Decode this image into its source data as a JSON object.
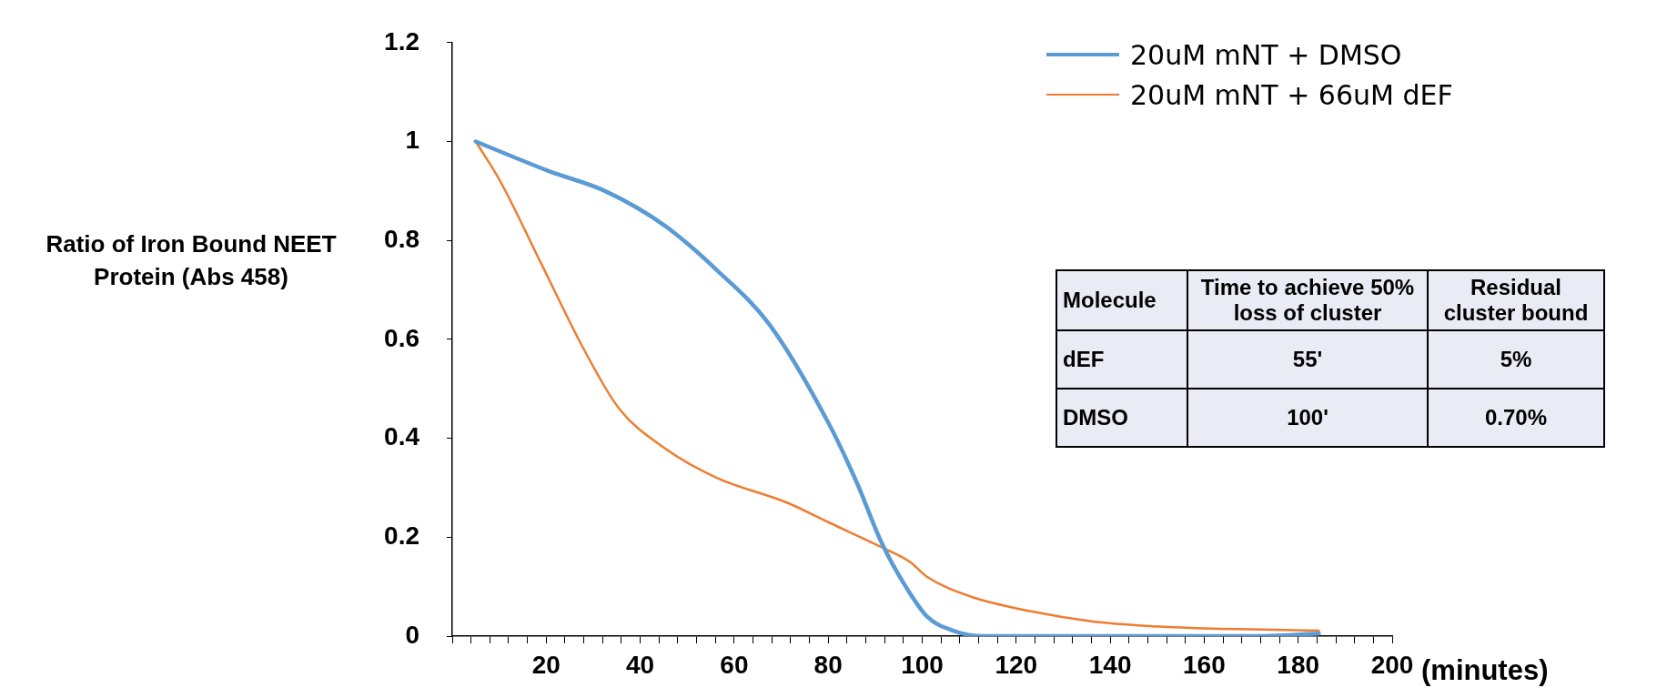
{
  "chart_data": {
    "type": "line",
    "xlabel": "(minutes)",
    "ylabel": "Ratio of Iron Bound NEET Protein (Abs 458)",
    "series": [
      {
        "name": "20uM mNT + DMSO",
        "color": "#5b9bd5",
        "x": [
          5,
          20.6,
          32.5,
          45.2,
          56.3,
          67.5,
          80.1,
          86.1,
          91.3,
          96.5,
          101,
          106.9,
          112.9,
          130,
          150,
          170,
          184.4
        ],
        "values": [
          1,
          0.94,
          0.9,
          0.83,
          0.74,
          0.63,
          0.43,
          0.31,
          0.19,
          0.1,
          0.04,
          0.01,
          0,
          0,
          0,
          0,
          0.005
        ]
      },
      {
        "name": "20uM mNT + 66uM dEF",
        "color": "#ed7d31",
        "x": [
          5,
          10.2,
          19.1,
          28,
          35.5,
          45.2,
          56.3,
          71.2,
          80.1,
          91.3,
          97.4,
          101,
          110.3,
          123.2,
          136,
          149,
          161.9,
          174.8,
          184.4
        ],
        "values": [
          1,
          0.92,
          0.75,
          0.58,
          0.46,
          0.38,
          0.32,
          0.27,
          0.23,
          0.18,
          0.15,
          0.12,
          0.08,
          0.05,
          0.03,
          0.02,
          0.015,
          0.013,
          0.011
        ]
      }
    ],
    "xlim": [
      0,
      200
    ],
    "xticks": [
      {
        "value": 0,
        "label": null
      },
      {
        "value": 4,
        "label": null
      },
      {
        "value": 8,
        "label": null
      },
      {
        "value": 12,
        "label": null
      },
      {
        "value": 16,
        "label": null
      },
      20,
      {
        "value": 24,
        "label": null
      },
      {
        "value": 28,
        "label": null
      },
      {
        "value": 32,
        "label": null
      },
      {
        "value": 36,
        "label": null
      },
      40,
      {
        "value": 44,
        "label": null
      },
      {
        "value": 48,
        "label": null
      },
      {
        "value": 52,
        "label": null
      },
      {
        "value": 56,
        "label": null
      },
      60,
      {
        "value": 64,
        "label": null
      },
      {
        "value": 68,
        "label": null
      },
      {
        "value": 72,
        "label": null
      },
      {
        "value": 76,
        "label": null
      },
      80,
      {
        "value": 84,
        "label": null
      },
      {
        "value": 88,
        "label": null
      },
      {
        "value": 92,
        "label": null
      },
      {
        "value": 96,
        "label": null
      },
      100,
      {
        "value": 104,
        "label": null
      },
      {
        "value": 108,
        "label": null
      },
      {
        "value": 112,
        "label": null
      },
      {
        "value": 116,
        "label": null
      },
      120,
      {
        "value": 124,
        "label": null
      },
      {
        "value": 128,
        "label": null
      },
      {
        "value": 132,
        "label": null
      },
      {
        "value": 136,
        "label": null
      },
      140,
      {
        "value": 144,
        "label": null
      },
      {
        "value": 148,
        "label": null
      },
      {
        "value": 152,
        "label": null
      },
      {
        "value": 156,
        "label": null
      },
      160,
      {
        "value": 164,
        "label": null
      },
      {
        "value": 168,
        "label": null
      },
      {
        "value": 172,
        "label": null
      },
      {
        "value": 176,
        "label": null
      },
      180,
      {
        "value": 184,
        "label": null
      },
      {
        "value": 188,
        "label": null
      },
      {
        "value": 192,
        "label": null
      },
      {
        "value": 196,
        "label": null
      },
      200
    ],
    "ylim": [
      0,
      1.2
    ],
    "yticks": [
      0,
      0.2,
      0.4,
      0.6,
      0.8,
      1,
      1.2
    ],
    "grid": false,
    "legend": "top right",
    "marker": "none",
    "line_style": "solid",
    "annotations": [
      "Molecule",
      "Time to achieve 50% loss of cluster",
      "Residual cluster bound",
      "dEF",
      "55'",
      "5%",
      "DMSO",
      "100'",
      "0.70%"
    ]
  }
}
